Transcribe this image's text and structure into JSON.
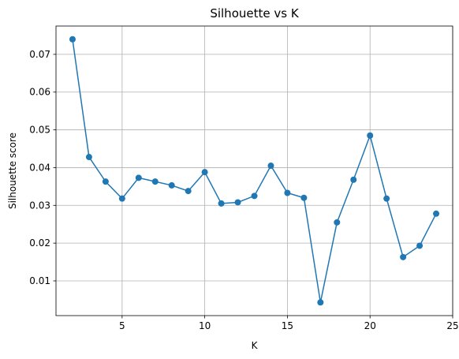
{
  "chart_data": {
    "type": "line",
    "title": "Silhouette vs K",
    "xlabel": "K",
    "ylabel": "Silhouette score",
    "xlim": [
      1.0,
      25.0
    ],
    "ylim": [
      0.0008,
      0.0775
    ],
    "xticks": [
      5,
      10,
      15,
      20,
      25
    ],
    "yticks": [
      0.01,
      0.02,
      0.03,
      0.04,
      0.05,
      0.06,
      0.07
    ],
    "ytick_labels": [
      "0.01",
      "0.02",
      "0.03",
      "0.04",
      "0.05",
      "0.06",
      "0.07"
    ],
    "grid": true,
    "color": "#1f77b4",
    "marker": "circle",
    "x": [
      2,
      3,
      4,
      5,
      6,
      7,
      8,
      9,
      10,
      11,
      12,
      13,
      14,
      15,
      16,
      17,
      18,
      19,
      20,
      21,
      22,
      23,
      24
    ],
    "y": [
      0.074,
      0.0428,
      0.0363,
      0.0318,
      0.0373,
      0.0363,
      0.0353,
      0.0338,
      0.0388,
      0.0305,
      0.0308,
      0.0325,
      0.0405,
      0.0333,
      0.032,
      0.0043,
      0.0255,
      0.0368,
      0.0485,
      0.0318,
      0.0163,
      0.0193,
      0.0278
    ]
  }
}
